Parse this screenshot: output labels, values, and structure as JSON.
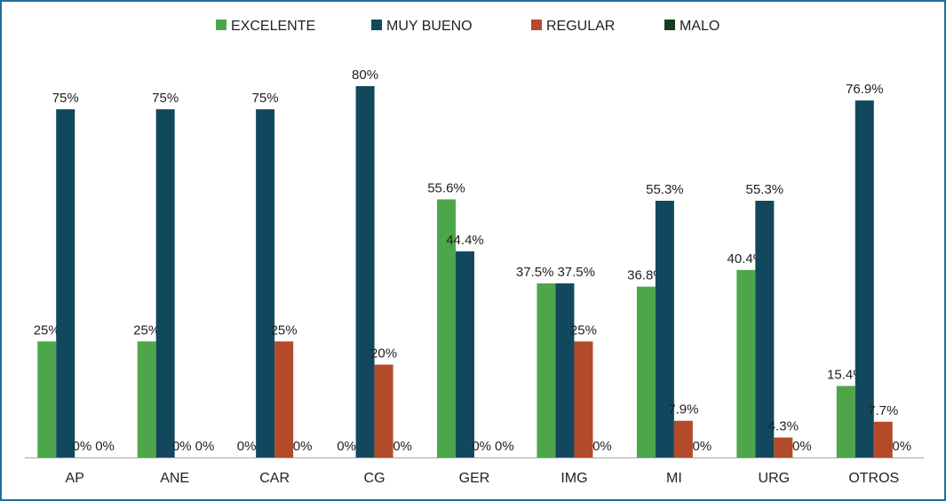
{
  "chart_data": {
    "type": "bar",
    "title": "",
    "xlabel": "",
    "ylabel": "",
    "ylim": [
      0,
      100
    ],
    "grid": false,
    "legend_position": "top",
    "categories": [
      "AP",
      "ANE",
      "CAR",
      "CG",
      "GER",
      "IMG",
      "MI",
      "URG",
      "OTROS"
    ],
    "series": [
      {
        "name": "EXCELENTE",
        "color": "#4ea64b",
        "values": [
          25,
          25,
          0,
          0,
          55.6,
          37.5,
          36.8,
          40.4,
          15.4
        ],
        "labels": [
          "25%",
          "25%",
          "0%",
          "0%",
          "55.6%",
          "37.5%",
          "36.8%",
          "40.4%",
          "15.4%"
        ]
      },
      {
        "name": "MUY BUENO",
        "color": "#12485e",
        "values": [
          75,
          75,
          75,
          80,
          44.4,
          37.5,
          55.3,
          55.3,
          76.9
        ],
        "labels": [
          "75%",
          "75%",
          "75%",
          "80%",
          "44.4%",
          "37.5%",
          "55.3%",
          "55.3%",
          "76.9%"
        ]
      },
      {
        "name": "REGULAR",
        "color": "#b34a2a",
        "values": [
          0,
          0,
          25,
          20,
          0,
          25,
          7.9,
          4.3,
          7.7
        ],
        "labels": [
          "0%",
          "0%",
          "25%",
          "20%",
          "0%",
          "25%",
          "7.9%",
          "4.3%",
          "7.7%"
        ]
      },
      {
        "name": "MALO",
        "color": "#183d20",
        "values": [
          0,
          0,
          0,
          0,
          0,
          0,
          0,
          0,
          0
        ],
        "labels": [
          "0%",
          "0%",
          "0%",
          "0%",
          "0%",
          "0%",
          "0%",
          "0%",
          "0%"
        ]
      }
    ]
  }
}
